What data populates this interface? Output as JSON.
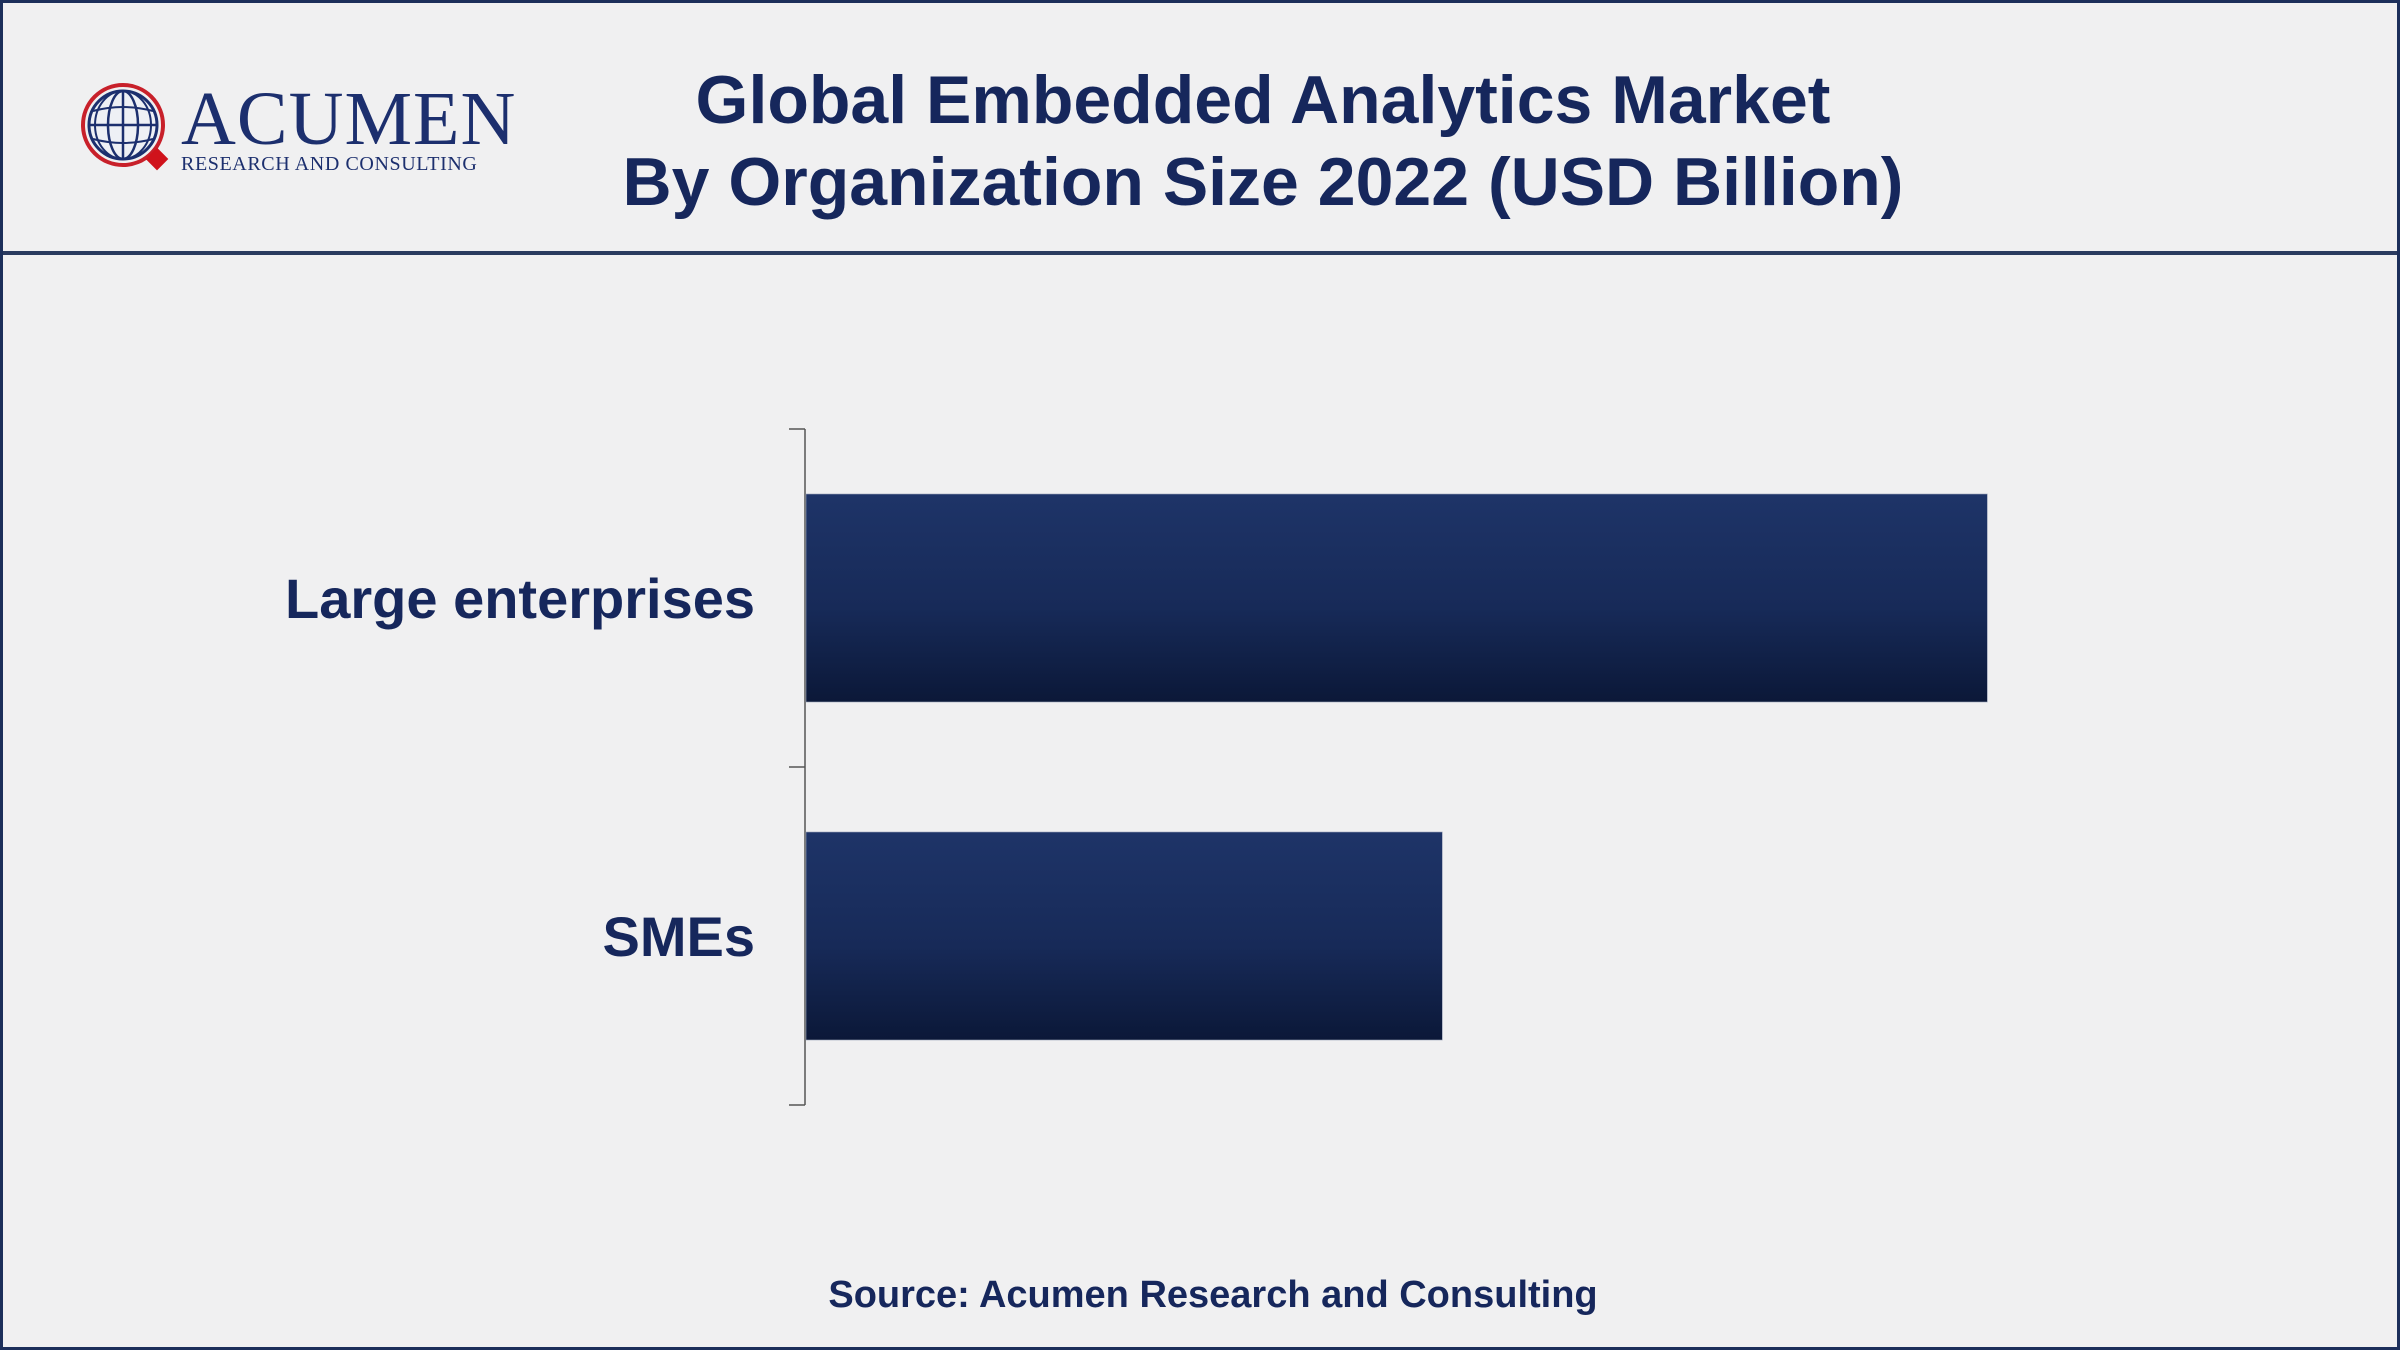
{
  "header": {
    "logo_name": "ACUMEN",
    "logo_tagline": "RESEARCH AND CONSULTING",
    "logo_icon": "globe-icon"
  },
  "chart_data": {
    "type": "bar",
    "orientation": "horizontal",
    "title": "Global Embedded Analytics Market",
    "subtitle": "By Organization Size 2022 (USD Billion)",
    "categories": [
      "Large enterprises",
      "SMEs"
    ],
    "values": [
      40.1,
      21.6
    ],
    "xlim": [
      0,
      50
    ],
    "xlabel": "",
    "ylabel": "",
    "grid": false,
    "legend": "none",
    "bar_color": "#1b2f62"
  },
  "footer": {
    "source": "Source: Acumen Research and Consulting"
  }
}
